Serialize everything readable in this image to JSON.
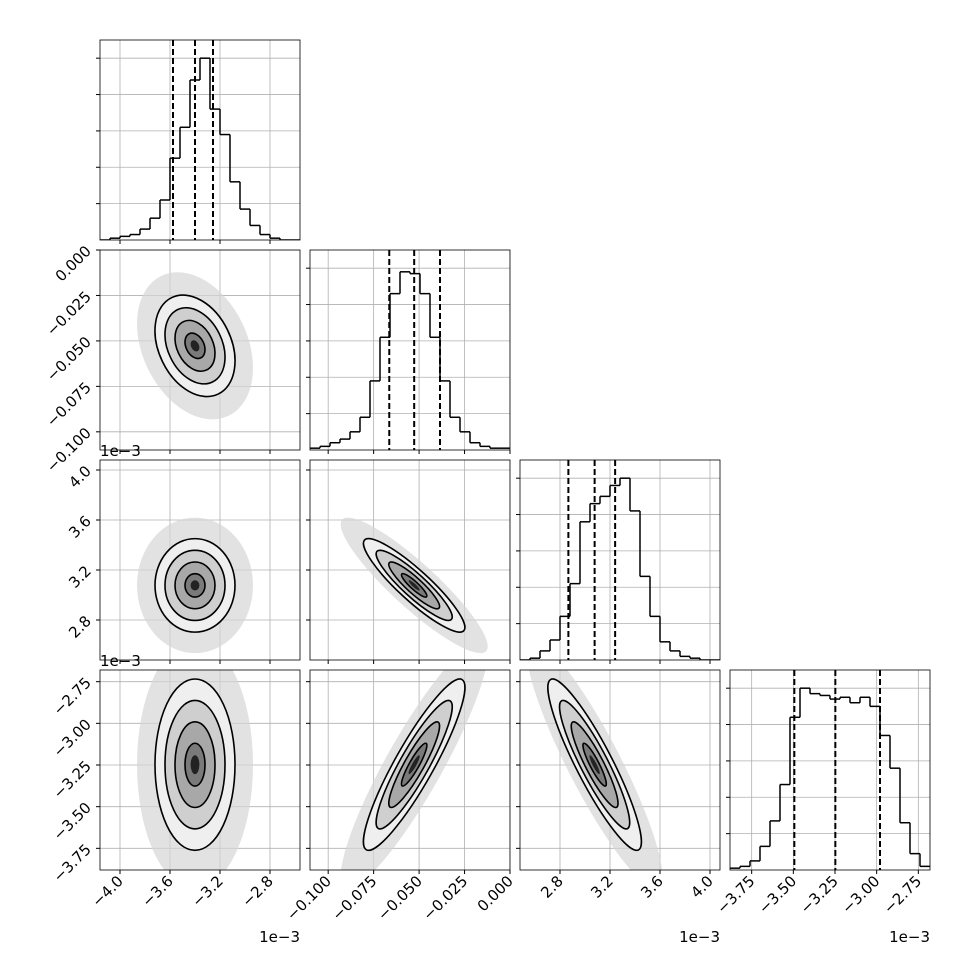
{
  "chart_data": {
    "type": "corner",
    "color": "#000000",
    "grid": true,
    "levels": [
      0.5,
      1,
      1.5,
      2
    ],
    "hist_ylim": [
      0,
      110
    ],
    "hist_yticks": [
      20,
      40,
      60,
      80,
      100
    ],
    "correlation": [
      [],
      [
        -0.3
      ],
      [
        0.0,
        -0.9
      ],
      [
        0.0,
        0.9,
        -0.9
      ]
    ],
    "params": [
      {
        "xlim": [
          -4.16,
          -2.56
        ],
        "xticks": [
          {
            "value": -4.0,
            "label": "−4.0"
          },
          {
            "value": -3.6,
            "label": "−3.6"
          },
          {
            "value": -3.2,
            "label": "−3.2"
          },
          {
            "value": -2.8,
            "label": "−2.8"
          }
        ],
        "offset_text": "1e−3",
        "quantiles": [
          -3.576,
          -3.4,
          -3.256
        ],
        "bins": [
          -4.16,
          -4.08,
          -4.0,
          -3.92,
          -3.84,
          -3.76,
          -3.68,
          -3.6,
          -3.52,
          -3.44,
          -3.36,
          -3.28,
          -3.2,
          -3.12,
          -3.04,
          -2.96,
          -2.88,
          -2.8,
          -2.72,
          -2.64,
          -2.56
        ],
        "counts": [
          0,
          1,
          2,
          3,
          6,
          12,
          22,
          45,
          62,
          88,
          100,
          72,
          58,
          32,
          17,
          8,
          3,
          1,
          0,
          0
        ]
      },
      {
        "xlim": [
          -0.11,
          0.0
        ],
        "xticks": [
          {
            "value": -0.1,
            "label": "−0.100"
          },
          {
            "value": -0.075,
            "label": "−0.075"
          },
          {
            "value": -0.05,
            "label": "−0.050"
          },
          {
            "value": -0.025,
            "label": "−0.025"
          },
          {
            "value": 0.0,
            "label": "0.000"
          }
        ],
        "quantiles": [
          -0.0664,
          -0.0527,
          -0.0385
        ],
        "bins": [
          -0.11,
          -0.1045,
          -0.099,
          -0.0935,
          -0.088,
          -0.0825,
          -0.077,
          -0.0715,
          -0.066,
          -0.0605,
          -0.055,
          -0.0495,
          -0.044,
          -0.0385,
          -0.033,
          -0.0275,
          -0.022,
          -0.0165,
          -0.011,
          -0.0055,
          0.0
        ],
        "counts": [
          1,
          2,
          4,
          6,
          10,
          18,
          38,
          62,
          86,
          98,
          97,
          86,
          62,
          38,
          18,
          10,
          4,
          2,
          1,
          1
        ]
      },
      {
        "xlim": [
          2.48,
          4.08
        ],
        "xticks": [
          2.8,
          3.2,
          3.6,
          {
            "value": 4.0,
            "label": "4.0"
          }
        ],
        "offset_text": "1e−3",
        "quantiles": [
          2.867,
          3.077,
          3.241
        ],
        "bins": [
          2.48,
          2.56,
          2.64,
          2.72,
          2.8,
          2.88,
          2.96,
          3.04,
          3.12,
          3.2,
          3.28,
          3.36,
          3.44,
          3.52,
          3.6,
          3.68,
          3.76,
          3.84,
          3.92,
          4.0,
          4.08
        ],
        "counts": [
          0,
          1,
          5,
          11,
          24,
          42,
          76,
          86,
          90,
          96,
          100,
          82,
          46,
          24,
          10,
          5,
          2,
          1,
          0,
          0
        ]
      },
      {
        "xlim": [
          -3.88,
          -2.68
        ],
        "xticks": [
          {
            "value": -3.75,
            "label": "−3.75"
          },
          {
            "value": -3.5,
            "label": "−3.50"
          },
          {
            "value": -3.25,
            "label": "−3.25"
          },
          {
            "value": -3.0,
            "label": "−3.00"
          },
          {
            "value": -2.75,
            "label": "−2.75"
          }
        ],
        "offset_text": "1e−3",
        "quantiles": [
          -3.494,
          -3.248,
          -2.98
        ],
        "bins": [
          -3.88,
          -3.82,
          -3.76,
          -3.7,
          -3.64,
          -3.58,
          -3.52,
          -3.46,
          -3.4,
          -3.34,
          -3.28,
          -3.22,
          -3.16,
          -3.1,
          -3.04,
          -2.98,
          -2.92,
          -2.86,
          -2.8,
          -2.74,
          -2.68
        ],
        "counts": [
          1,
          2,
          5,
          13,
          27,
          47,
          84,
          100,
          97,
          96,
          94,
          95,
          92,
          95,
          90,
          74,
          56,
          26,
          9,
          2
        ]
      }
    ]
  }
}
